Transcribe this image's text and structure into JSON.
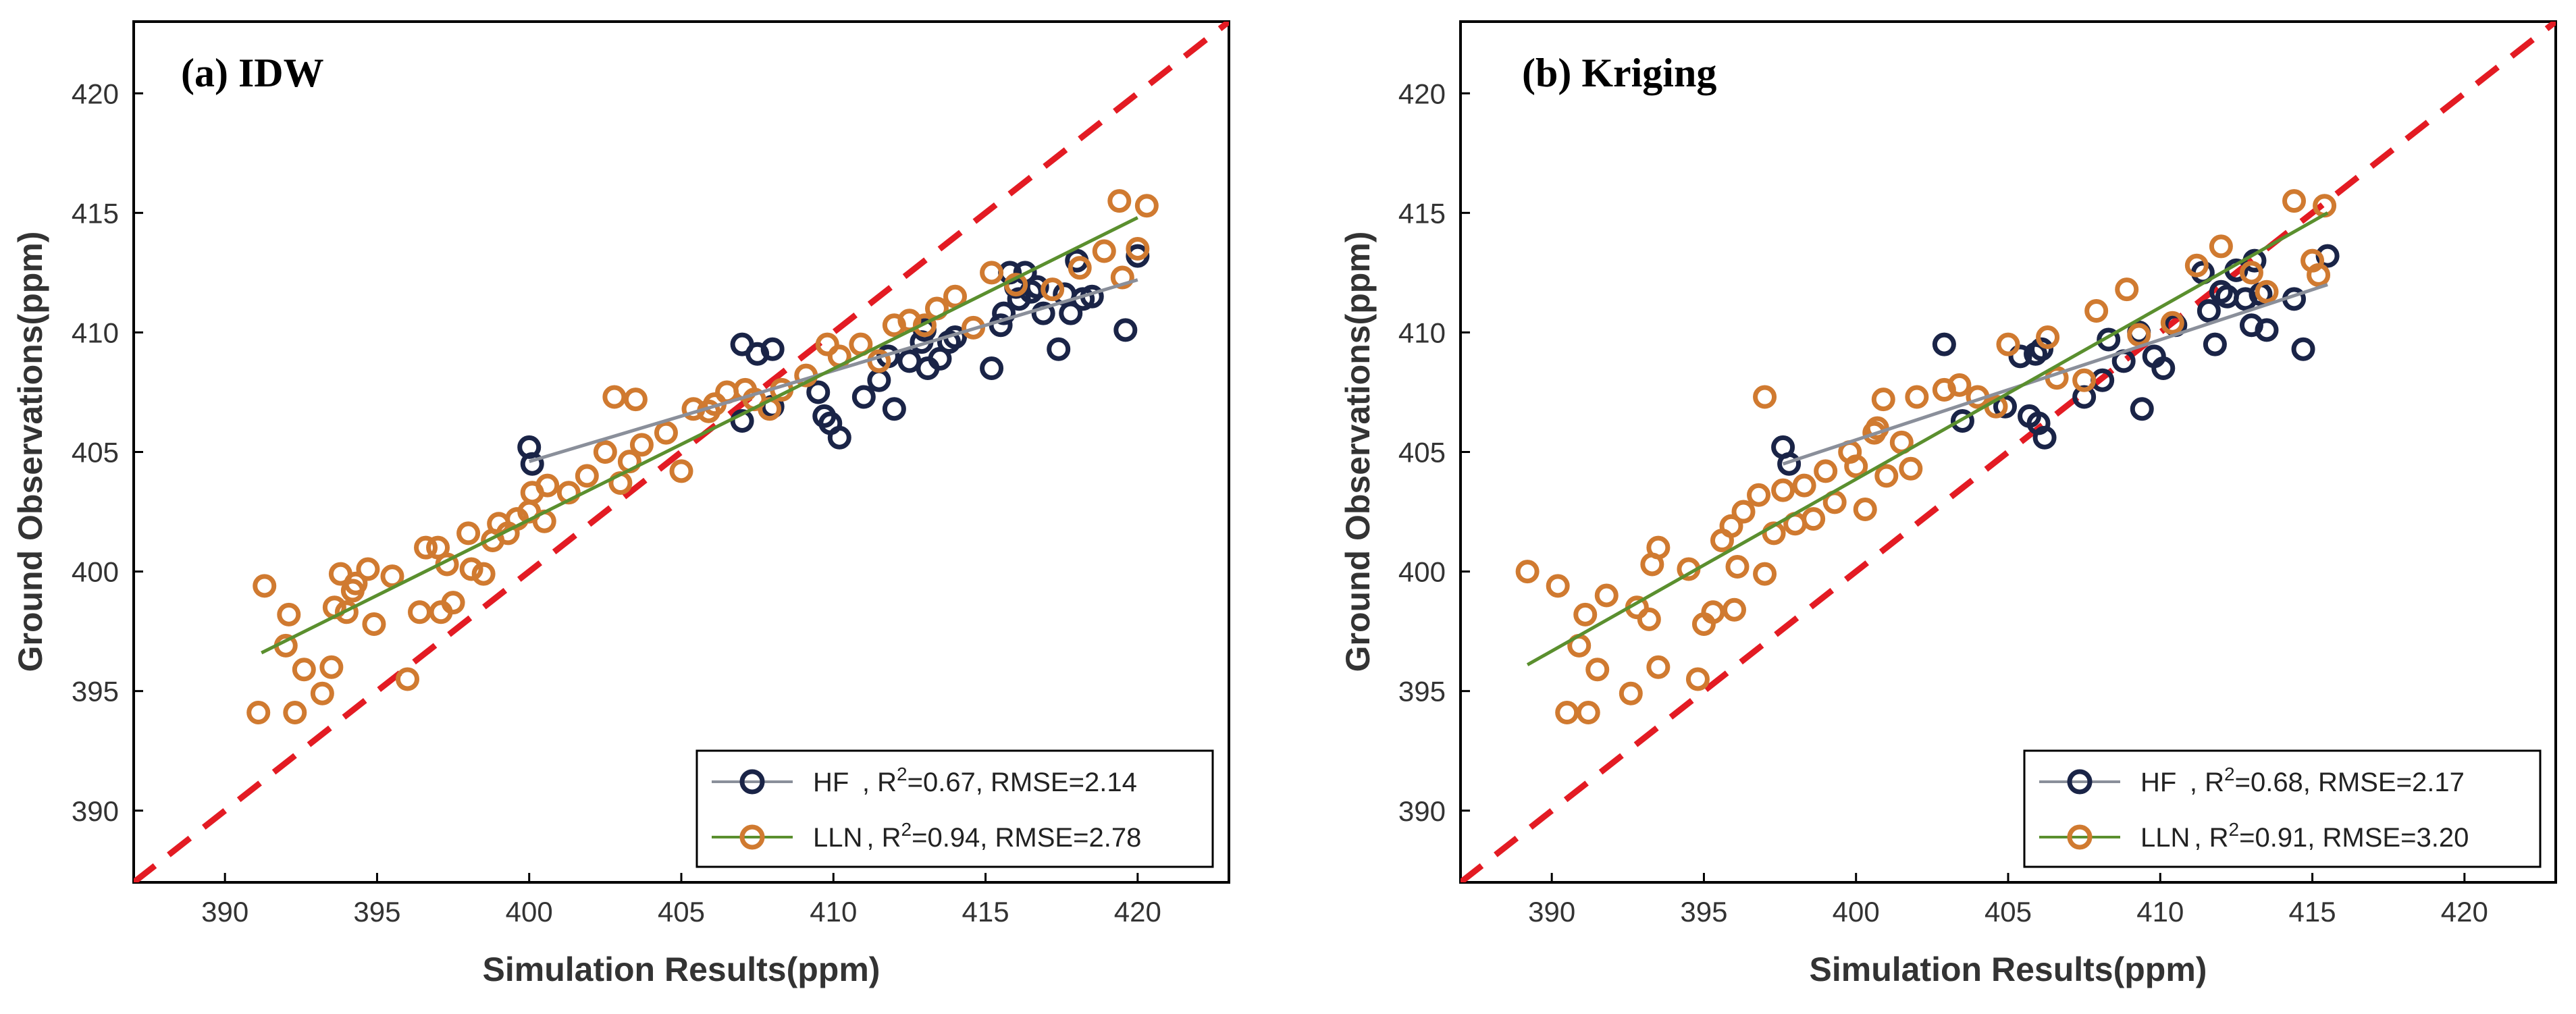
{
  "chart_data": [
    {
      "type": "scatter",
      "title": "(a) IDW",
      "xlabel": "Simulation Results(ppm)",
      "ylabel": "Ground Observations(ppm)",
      "xlim": [
        387,
        423
      ],
      "ylim": [
        387,
        423
      ],
      "xticks": [
        390,
        395,
        400,
        405,
        410,
        415,
        420
      ],
      "yticks": [
        390,
        395,
        400,
        405,
        410,
        415,
        420
      ],
      "legend_position": "bottom-right",
      "identity_line": true,
      "series": [
        {
          "name": "HF",
          "legend_label": ", R",
          "sup": "2",
          "legend_stats": "=0.67, RMSE=2.14",
          "color": "#1a2447",
          "fit_color": "#8a8f9a",
          "fit": [
            [
              400,
              404.6
            ],
            [
              420,
              412.2
            ]
          ],
          "points": [
            [
              400.0,
              405.2
            ],
            [
              400.1,
              404.5
            ],
            [
              407.0,
              409.5
            ],
            [
              407.5,
              409.1
            ],
            [
              408.0,
              409.3
            ],
            [
              408.0,
              406.9
            ],
            [
              407.0,
              406.3
            ],
            [
              409.5,
              407.5
            ],
            [
              409.7,
              406.5
            ],
            [
              409.9,
              406.2
            ],
            [
              410.2,
              405.6
            ],
            [
              411.0,
              407.3
            ],
            [
              411.5,
              408.0
            ],
            [
              411.8,
              409.0
            ],
            [
              412.0,
              406.8
            ],
            [
              412.5,
              408.8
            ],
            [
              412.9,
              409.6
            ],
            [
              413.0,
              410.1
            ],
            [
              413.1,
              408.5
            ],
            [
              413.5,
              408.9
            ],
            [
              413.8,
              409.6
            ],
            [
              414.0,
              409.8
            ],
            [
              415.2,
              408.5
            ],
            [
              415.5,
              410.3
            ],
            [
              415.6,
              410.8
            ],
            [
              415.8,
              412.5
            ],
            [
              416.0,
              411.9
            ],
            [
              416.1,
              411.4
            ],
            [
              416.3,
              412.5
            ],
            [
              416.5,
              411.7
            ],
            [
              416.7,
              411.9
            ],
            [
              416.9,
              410.8
            ],
            [
              417.4,
              409.3
            ],
            [
              417.6,
              411.6
            ],
            [
              417.8,
              410.8
            ],
            [
              418.0,
              413.0
            ],
            [
              418.2,
              411.4
            ],
            [
              418.5,
              411.5
            ],
            [
              419.6,
              410.1
            ],
            [
              420.0,
              413.2
            ]
          ]
        },
        {
          "name": "LLN",
          "legend_label": ", R",
          "sup": "2",
          "legend_stats": "=0.94, RMSE=2.78",
          "color": "#d07a30",
          "fit_color": "#5a8f2e",
          "fit": [
            [
              391.2,
              396.6
            ],
            [
              420,
              414.8
            ]
          ],
          "points": [
            [
              391.1,
              394.1
            ],
            [
              391.3,
              399.4
            ],
            [
              392.0,
              396.9
            ],
            [
              392.1,
              398.2
            ],
            [
              392.3,
              394.1
            ],
            [
              392.6,
              395.9
            ],
            [
              393.2,
              394.9
            ],
            [
              393.5,
              396.0
            ],
            [
              393.6,
              398.5
            ],
            [
              393.8,
              399.9
            ],
            [
              394.0,
              398.3
            ],
            [
              394.2,
              399.2
            ],
            [
              394.3,
              399.5
            ],
            [
              394.7,
              400.1
            ],
            [
              394.9,
              397.8
            ],
            [
              395.5,
              399.8
            ],
            [
              396.0,
              395.5
            ],
            [
              396.4,
              398.3
            ],
            [
              396.6,
              401.0
            ],
            [
              397.0,
              401.0
            ],
            [
              397.1,
              398.3
            ],
            [
              397.3,
              400.3
            ],
            [
              397.5,
              398.7
            ],
            [
              398.0,
              401.6
            ],
            [
              398.1,
              400.1
            ],
            [
              398.5,
              399.9
            ],
            [
              398.8,
              401.3
            ],
            [
              399.0,
              402.0
            ],
            [
              399.3,
              401.6
            ],
            [
              399.6,
              402.2
            ],
            [
              400.0,
              402.5
            ],
            [
              400.1,
              403.3
            ],
            [
              400.5,
              402.1
            ],
            [
              400.6,
              403.6
            ],
            [
              401.3,
              403.3
            ],
            [
              401.9,
              404.0
            ],
            [
              402.5,
              405.0
            ],
            [
              402.8,
              407.3
            ],
            [
              403.0,
              403.7
            ],
            [
              403.3,
              404.6
            ],
            [
              403.5,
              407.2
            ],
            [
              403.7,
              405.3
            ],
            [
              404.5,
              405.8
            ],
            [
              405.0,
              404.2
            ],
            [
              405.4,
              406.8
            ],
            [
              405.9,
              406.7
            ],
            [
              406.1,
              407.0
            ],
            [
              406.5,
              407.5
            ],
            [
              407.1,
              407.6
            ],
            [
              407.4,
              407.2
            ],
            [
              407.9,
              406.8
            ],
            [
              408.3,
              407.6
            ],
            [
              409.1,
              408.2
            ],
            [
              409.8,
              409.5
            ],
            [
              410.2,
              409.0
            ],
            [
              410.9,
              409.5
            ],
            [
              411.5,
              408.8
            ],
            [
              412.0,
              410.3
            ],
            [
              412.5,
              410.5
            ],
            [
              413.0,
              410.3
            ],
            [
              413.4,
              411.0
            ],
            [
              414.0,
              411.5
            ],
            [
              414.6,
              410.2
            ],
            [
              415.2,
              412.5
            ],
            [
              416.0,
              412.0
            ],
            [
              417.2,
              411.8
            ],
            [
              418.1,
              412.7
            ],
            [
              418.9,
              413.4
            ],
            [
              419.4,
              415.5
            ],
            [
              419.5,
              412.3
            ],
            [
              420.0,
              413.5
            ],
            [
              420.3,
              415.3
            ]
          ]
        }
      ]
    },
    {
      "type": "scatter",
      "title": "(b) Kriging",
      "xlabel": "Simulation Results(ppm)",
      "ylabel": "Ground Observations(ppm)",
      "xlim": [
        387,
        423
      ],
      "ylim": [
        387,
        423
      ],
      "xticks": [
        390,
        395,
        400,
        405,
        410,
        415,
        420
      ],
      "yticks": [
        390,
        395,
        400,
        405,
        410,
        415,
        420
      ],
      "legend_position": "bottom-right",
      "identity_line": true,
      "series": [
        {
          "name": "HF",
          "legend_label": ", R",
          "sup": "2",
          "legend_stats": "=0.68, RMSE=2.17",
          "color": "#1a2447",
          "fit_color": "#8a8f9a",
          "fit": [
            [
              397.6,
              404.5
            ],
            [
              415.5,
              412.0
            ]
          ],
          "points": [
            [
              397.6,
              405.2
            ],
            [
              397.8,
              404.5
            ],
            [
              402.9,
              409.5
            ],
            [
              403.5,
              406.3
            ],
            [
              404.9,
              406.9
            ],
            [
              405.4,
              409.0
            ],
            [
              405.9,
              409.1
            ],
            [
              405.7,
              406.5
            ],
            [
              406.0,
              406.2
            ],
            [
              406.2,
              405.6
            ],
            [
              406.1,
              409.3
            ],
            [
              407.5,
              407.3
            ],
            [
              408.1,
              408.0
            ],
            [
              408.3,
              409.7
            ],
            [
              408.8,
              408.8
            ],
            [
              409.4,
              406.8
            ],
            [
              409.3,
              410.0
            ],
            [
              409.8,
              409.0
            ],
            [
              410.1,
              408.5
            ],
            [
              410.5,
              410.3
            ],
            [
              411.4,
              412.5
            ],
            [
              411.6,
              410.9
            ],
            [
              411.8,
              409.5
            ],
            [
              412.0,
              411.7
            ],
            [
              412.2,
              411.5
            ],
            [
              412.5,
              412.6
            ],
            [
              412.8,
              411.4
            ],
            [
              413.0,
              410.3
            ],
            [
              413.1,
              413.0
            ],
            [
              413.3,
              411.6
            ],
            [
              413.5,
              410.1
            ],
            [
              414.4,
              411.4
            ],
            [
              414.7,
              409.3
            ],
            [
              415.5,
              413.2
            ]
          ]
        },
        {
          "name": "LLN",
          "legend_label": ", R",
          "sup": "2",
          "legend_stats": "=0.91, RMSE=3.20",
          "color": "#d07a30",
          "fit_color": "#5a8f2e",
          "fit": [
            [
              389.2,
              396.1
            ],
            [
              415.5,
              415.0
            ]
          ],
          "points": [
            [
              389.2,
              400.0
            ],
            [
              390.2,
              399.4
            ],
            [
              390.5,
              394.1
            ],
            [
              390.9,
              396.9
            ],
            [
              391.1,
              398.2
            ],
            [
              391.2,
              394.1
            ],
            [
              391.5,
              395.9
            ],
            [
              391.8,
              399.0
            ],
            [
              392.6,
              394.9
            ],
            [
              392.8,
              398.5
            ],
            [
              393.2,
              398.0
            ],
            [
              393.3,
              400.3
            ],
            [
              393.5,
              396.0
            ],
            [
              393.5,
              401.0
            ],
            [
              394.5,
              400.1
            ],
            [
              394.8,
              395.5
            ],
            [
              395.0,
              397.8
            ],
            [
              395.3,
              398.3
            ],
            [
              395.6,
              401.3
            ],
            [
              395.9,
              401.9
            ],
            [
              396.0,
              398.4
            ],
            [
              396.1,
              400.2
            ],
            [
              396.3,
              402.5
            ],
            [
              396.8,
              403.2
            ],
            [
              397.0,
              399.9
            ],
            [
              397.0,
              407.3
            ],
            [
              397.3,
              401.6
            ],
            [
              397.6,
              403.4
            ],
            [
              398.0,
              402.0
            ],
            [
              398.3,
              403.6
            ],
            [
              398.6,
              402.2
            ],
            [
              399.0,
              404.2
            ],
            [
              399.3,
              402.9
            ],
            [
              399.8,
              405.0
            ],
            [
              400.0,
              404.4
            ],
            [
              400.3,
              402.6
            ],
            [
              400.6,
              405.8
            ],
            [
              400.7,
              406.0
            ],
            [
              400.9,
              407.2
            ],
            [
              401.0,
              404.0
            ],
            [
              401.5,
              405.4
            ],
            [
              401.8,
              404.3
            ],
            [
              402.0,
              407.3
            ],
            [
              402.9,
              407.6
            ],
            [
              403.4,
              407.8
            ],
            [
              404.0,
              407.3
            ],
            [
              404.6,
              406.9
            ],
            [
              405.0,
              409.5
            ],
            [
              406.3,
              409.8
            ],
            [
              406.6,
              408.1
            ],
            [
              407.5,
              408.0
            ],
            [
              407.9,
              410.9
            ],
            [
              408.9,
              411.8
            ],
            [
              409.3,
              409.9
            ],
            [
              410.4,
              410.4
            ],
            [
              411.2,
              412.8
            ],
            [
              412.0,
              413.6
            ],
            [
              413.0,
              412.5
            ],
            [
              413.5,
              411.7
            ],
            [
              414.4,
              415.5
            ],
            [
              415.0,
              413.0
            ],
            [
              415.2,
              412.4
            ],
            [
              415.4,
              415.3
            ]
          ]
        }
      ]
    }
  ]
}
